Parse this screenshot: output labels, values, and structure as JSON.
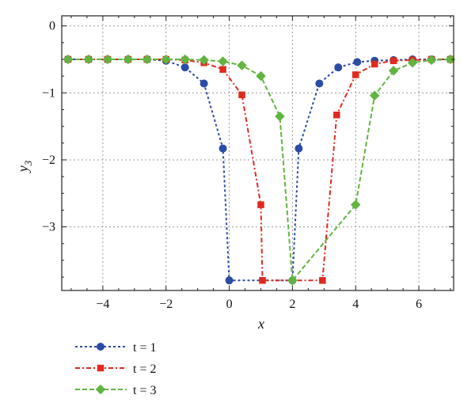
{
  "chart_data": {
    "type": "line",
    "title": "",
    "xlabel": "x",
    "ylabel": "y3",
    "xlim": [
      -5.3,
      7.1
    ],
    "ylim": [
      -3.95,
      0.15
    ],
    "xticks": [
      -4,
      -2,
      0,
      2,
      4,
      6
    ],
    "yticks": [
      0,
      -1,
      -2,
      -3
    ],
    "xtick_labels": [
      "−4",
      "−2",
      "0",
      "2",
      "4",
      "6"
    ],
    "ytick_labels": [
      "0",
      "−1",
      "−2",
      "−3"
    ],
    "grid": true,
    "legend_position": "below-left",
    "series": [
      {
        "name": "t = 1",
        "color": "#2b4ba4",
        "marker": "circle",
        "x": [
          -5.1,
          -4.45,
          -3.85,
          -3.2,
          -2.6,
          -2.0,
          -1.4,
          -0.8,
          -0.2,
          0.0,
          2.0,
          2.2,
          2.85,
          3.45,
          4.05,
          4.6,
          5.2,
          5.8,
          6.4,
          7.0
        ],
        "y": [
          -0.5,
          -0.5,
          -0.5,
          -0.5,
          -0.5,
          -0.52,
          -0.62,
          -0.86,
          -1.83,
          -3.8,
          -3.8,
          -1.83,
          -0.86,
          -0.62,
          -0.54,
          -0.52,
          -0.51,
          -0.5,
          -0.5,
          -0.5
        ]
      },
      {
        "name": "t = 2",
        "color": "#e02a1f",
        "marker": "square",
        "x": [
          -5.1,
          -4.45,
          -3.85,
          -3.2,
          -2.6,
          -2.0,
          -1.4,
          -0.8,
          -0.2,
          0.4,
          1.0,
          1.05,
          2.95,
          3.4,
          4.0,
          4.6,
          5.2,
          5.8,
          6.4,
          7.0
        ],
        "y": [
          -0.5,
          -0.5,
          -0.5,
          -0.5,
          -0.5,
          -0.5,
          -0.51,
          -0.55,
          -0.65,
          -1.03,
          -2.67,
          -3.8,
          -3.8,
          -1.33,
          -0.73,
          -0.57,
          -0.52,
          -0.51,
          -0.5,
          -0.5
        ]
      },
      {
        "name": "t = 3",
        "color": "#62b441",
        "marker": "diamond",
        "x": [
          -5.1,
          -4.45,
          -3.85,
          -3.2,
          -2.6,
          -2.0,
          -1.4,
          -0.8,
          -0.2,
          0.4,
          1.0,
          1.6,
          2.0,
          4.0,
          4.6,
          5.2,
          5.8,
          6.4,
          7.0
        ],
        "y": [
          -0.5,
          -0.5,
          -0.5,
          -0.5,
          -0.5,
          -0.5,
          -0.5,
          -0.51,
          -0.53,
          -0.59,
          -0.75,
          -1.35,
          -3.8,
          -2.67,
          -1.04,
          -0.67,
          -0.55,
          -0.51,
          -0.5
        ]
      }
    ]
  }
}
